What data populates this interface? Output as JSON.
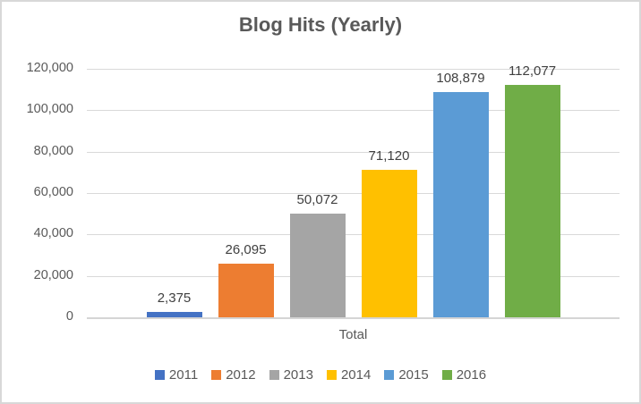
{
  "chart_data": {
    "type": "bar",
    "title": "Blog Hits (Yearly)",
    "xlabel": "",
    "ylabel": "",
    "categories": [
      "Total"
    ],
    "series": [
      {
        "name": "2011",
        "values": [
          2375
        ],
        "data_label": "2,375",
        "color": "#4472C4"
      },
      {
        "name": "2012",
        "values": [
          26095
        ],
        "data_label": "26,095",
        "color": "#ED7D31"
      },
      {
        "name": "2013",
        "values": [
          50072
        ],
        "data_label": "50,072",
        "color": "#A5A5A5"
      },
      {
        "name": "2014",
        "values": [
          71120
        ],
        "data_label": "71,120",
        "color": "#FFC000"
      },
      {
        "name": "2015",
        "values": [
          108879
        ],
        "data_label": "108,879",
        "color": "#5B9BD5"
      },
      {
        "name": "2016",
        "values": [
          112077
        ],
        "data_label": "112,077",
        "color": "#70AD47"
      }
    ],
    "ylim": [
      0,
      120000
    ],
    "ytick_interval": 20000,
    "yticks": [
      {
        "value": 0,
        "label": "0"
      },
      {
        "value": 20000,
        "label": "20,000"
      },
      {
        "value": 40000,
        "label": "40,000"
      },
      {
        "value": 60000,
        "label": "60,000"
      },
      {
        "value": 80000,
        "label": "80,000"
      },
      {
        "value": 100000,
        "label": "100,000"
      },
      {
        "value": 120000,
        "label": "120,000"
      }
    ],
    "grid": true,
    "legend_position": "bottom",
    "data_labels_position": "outside-end",
    "colors": {
      "gridline": "#D9D9D9",
      "axis_line": "#D5D5D5",
      "axis_text": "#595959",
      "title_text": "#595959",
      "data_label_text": "#404040",
      "frame_border": "#D8D8D8",
      "background": "#FFFFFF"
    }
  }
}
